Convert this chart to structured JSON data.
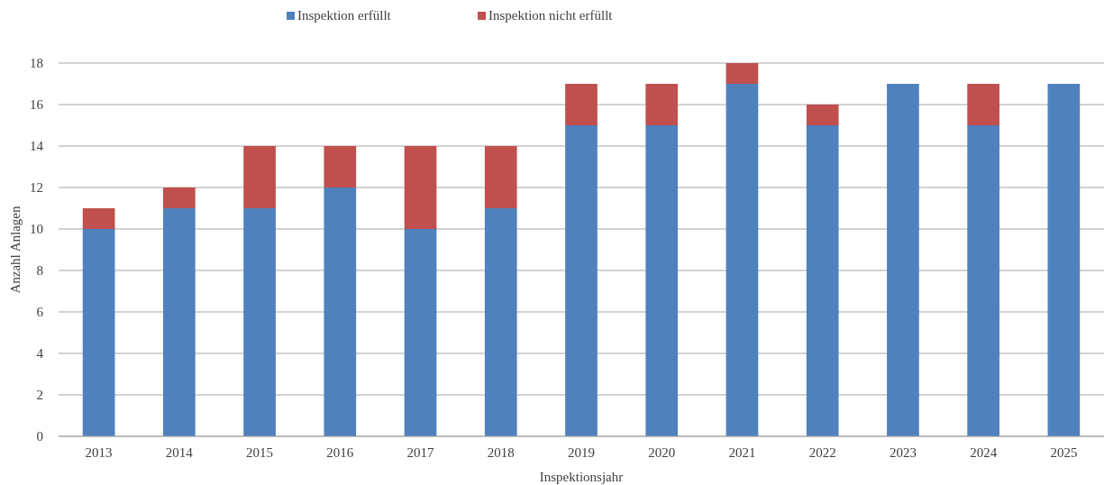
{
  "chart_data": {
    "type": "bar",
    "stacked": true,
    "xlabel": "Inspektionsjahr",
    "ylabel": "Anzahl Anlagen",
    "categories": [
      "2013",
      "2014",
      "2015",
      "2016",
      "2017",
      "2018",
      "2019",
      "2020",
      "2021",
      "2022",
      "2023",
      "2024",
      "2025"
    ],
    "series": [
      {
        "name": "Inspektion erfüllt",
        "color": "#4f81bd",
        "values": [
          10,
          11,
          11,
          12,
          10,
          11,
          15,
          15,
          17,
          15,
          17,
          15,
          17
        ]
      },
      {
        "name": "Inspektion nicht erfüllt",
        "color": "#c0504d",
        "values": [
          1,
          1,
          3,
          2,
          4,
          3,
          2,
          2,
          1,
          1,
          null,
          2,
          null
        ]
      }
    ],
    "ylim": [
      0,
      18
    ],
    "yticks": [
      0,
      2,
      4,
      6,
      8,
      10,
      12,
      14,
      16,
      18
    ],
    "grid": "y",
    "legend": "top"
  }
}
